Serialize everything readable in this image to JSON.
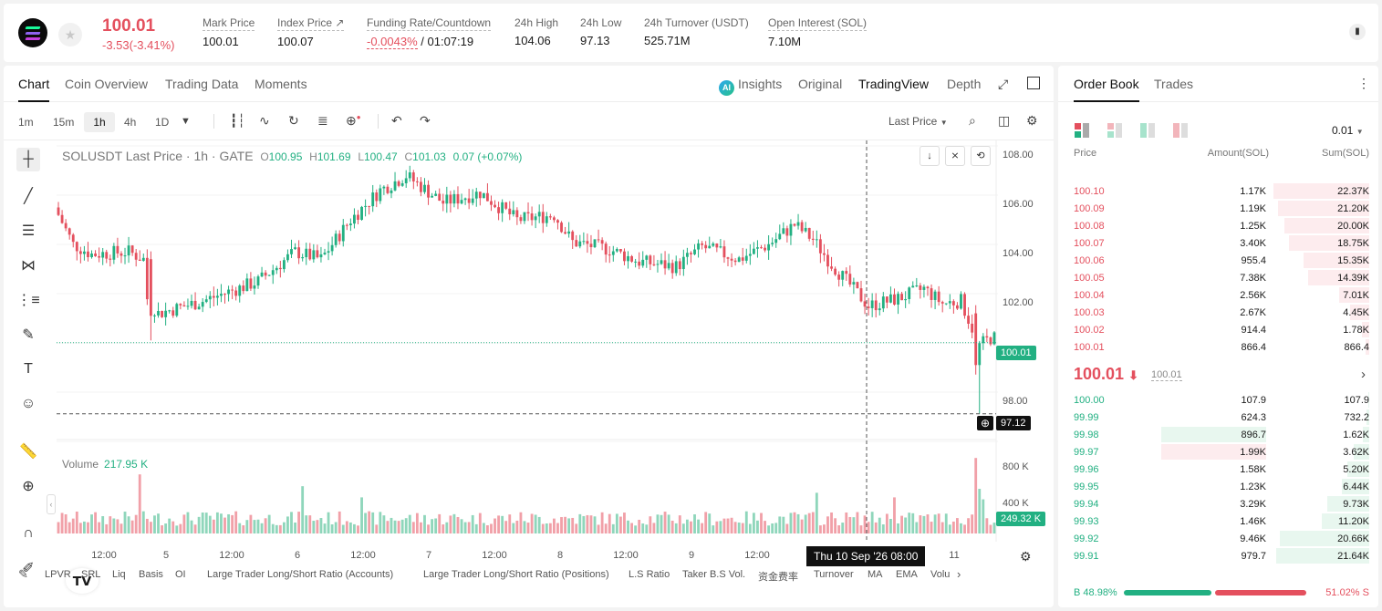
{
  "header": {
    "price": "100.01",
    "change": "-3.53(-3.41%)",
    "stats": [
      {
        "label": "Mark Price",
        "value": "100.01"
      },
      {
        "label": "Index Price ↗",
        "value": "100.07"
      },
      {
        "label": "Funding Rate/Countdown",
        "value_red": "-0.0043%",
        "value": "/ 01:07:19"
      },
      {
        "label": "24h High",
        "value": "104.06"
      },
      {
        "label": "24h Low",
        "value": "97.13"
      },
      {
        "label": "24h Turnover (USDT)",
        "value": "525.71M"
      },
      {
        "label": "Open Interest (SOL)",
        "value": "7.10M"
      }
    ]
  },
  "chart_tabs": [
    "Chart",
    "Coin Overview",
    "Trading Data",
    "Moments"
  ],
  "chart_views": {
    "insights": "Insights",
    "original": "Original",
    "tradingview": "TradingView",
    "depth": "Depth",
    "ai_badge": "AI"
  },
  "timeframes": [
    "1m",
    "15m",
    "1h",
    "4h",
    "1D"
  ],
  "last_price_select": "Last Price",
  "legend": {
    "symbol": "SOLUSDT Last Price · 1h · GATE",
    "o_label": "O",
    "o": "100.95",
    "h_label": "H",
    "h": "101.69",
    "l_label": "L",
    "l": "100.47",
    "c_label": "C",
    "c": "101.03",
    "chg": "0.07 (+0.07%)"
  },
  "volume_legend": {
    "label": "Volume",
    "value": "217.95 K"
  },
  "price_axis": [
    "108.00",
    "106.00",
    "104.00",
    "102.00",
    "100.00",
    "98.00"
  ],
  "volume_axis": [
    "800 K",
    "400 K"
  ],
  "price_tags": {
    "last": "100.01",
    "cursor": "97.12",
    "volume": "249.32 K"
  },
  "time_axis": [
    "12:00",
    "5",
    "12:00",
    "6",
    "12:00",
    "7",
    "12:00",
    "8",
    "12:00",
    "9",
    "12:00",
    "11"
  ],
  "crosshair_time": "Thu 10 Sep '26   08:00",
  "indicators": [
    "LPVR",
    "SRL",
    "Liq",
    "Basis",
    "OI",
    "Large Trader Long/Short Ratio (Accounts)",
    "Large Trader Long/Short Ratio (Positions)",
    "L.S Ratio",
    "Taker B.S Vol.",
    "资金费率",
    "Turnover",
    "MA",
    "EMA",
    "Volu"
  ],
  "orderbook": {
    "tabs": [
      "Order Book",
      "Trades"
    ],
    "precision": "0.01",
    "headers": {
      "price": "Price",
      "amount": "Amount(SOL)",
      "sum": "Sum(SOL)"
    },
    "asks": [
      {
        "price": "100.10",
        "amount": "1.17K",
        "sum": "22.37K",
        "depth": 1.0
      },
      {
        "price": "100.09",
        "amount": "1.19K",
        "sum": "21.20K",
        "depth": 0.95
      },
      {
        "price": "100.08",
        "amount": "1.25K",
        "sum": "20.00K",
        "depth": 0.89
      },
      {
        "price": "100.07",
        "amount": "3.40K",
        "sum": "18.75K",
        "depth": 0.84
      },
      {
        "price": "100.06",
        "amount": "955.4",
        "sum": "15.35K",
        "depth": 0.69
      },
      {
        "price": "100.05",
        "amount": "7.38K",
        "sum": "14.39K",
        "depth": 0.64
      },
      {
        "price": "100.04",
        "amount": "2.56K",
        "sum": "7.01K",
        "depth": 0.31
      },
      {
        "price": "100.03",
        "amount": "2.67K",
        "sum": "4.45K",
        "depth": 0.2
      },
      {
        "price": "100.02",
        "amount": "914.4",
        "sum": "1.78K",
        "depth": 0.08
      },
      {
        "price": "100.01",
        "amount": "866.4",
        "sum": "866.4",
        "depth": 0.04
      }
    ],
    "mid": {
      "price": "100.01",
      "arrow": "⬇",
      "mark": "100.01"
    },
    "bids": [
      {
        "price": "100.00",
        "amount": "107.9",
        "sum": "107.9",
        "depth": 0.005
      },
      {
        "price": "99.99",
        "amount": "624.3",
        "sum": "732.2",
        "depth": 0.03
      },
      {
        "price": "99.98",
        "amount": "896.7",
        "sum": "1.62K",
        "depth": 0.07,
        "hl": "green"
      },
      {
        "price": "99.97",
        "amount": "1.99K",
        "sum": "3.62K",
        "depth": 0.16,
        "hl": "red"
      },
      {
        "price": "99.96",
        "amount": "1.58K",
        "sum": "5.20K",
        "depth": 0.23
      },
      {
        "price": "99.95",
        "amount": "1.23K",
        "sum": "6.44K",
        "depth": 0.29
      },
      {
        "price": "99.94",
        "amount": "3.29K",
        "sum": "9.73K",
        "depth": 0.44
      },
      {
        "price": "99.93",
        "amount": "1.46K",
        "sum": "11.20K",
        "depth": 0.5
      },
      {
        "price": "99.92",
        "amount": "9.46K",
        "sum": "20.66K",
        "depth": 0.93
      },
      {
        "price": "99.91",
        "amount": "979.7",
        "sum": "21.64K",
        "depth": 0.97
      }
    ],
    "ratio": {
      "buy_label": "B",
      "buy": "48.98%",
      "sell": "51.02%",
      "sell_label": "S",
      "buy_fraction": 0.4898
    }
  },
  "colors": {
    "up": "#22b082",
    "down": "#e4505e",
    "up_vol": "#8fd6bb",
    "down_vol": "#f1a0a8"
  }
}
